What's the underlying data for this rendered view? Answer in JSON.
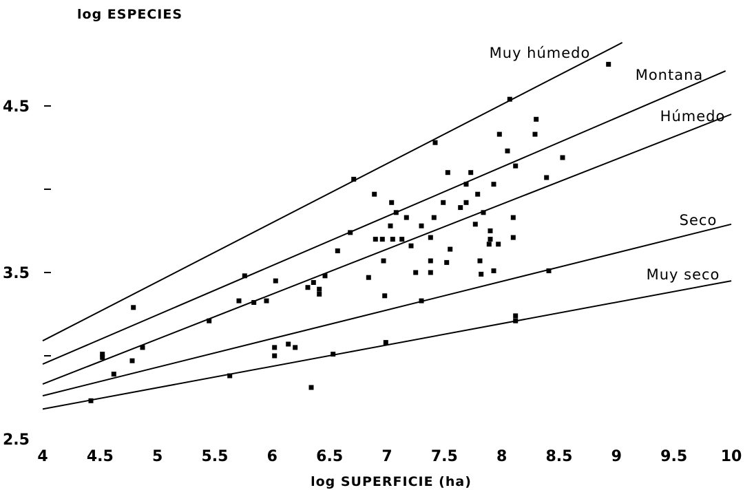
{
  "chart_data": {
    "type": "scatter",
    "title": "",
    "xlabel": "log SUPERFICIE (ha)",
    "ylabel": "log ESPECIES",
    "xlim": [
      4,
      10
    ],
    "ylim": [
      2.5,
      4.95
    ],
    "x_ticks": [
      "4",
      "4.5",
      "5",
      "5.5",
      "6",
      "6.5",
      "7",
      "7.5",
      "8",
      "8.5",
      "9",
      "9.5",
      "10"
    ],
    "y_ticks": [
      "2.5",
      "3.5",
      "4.5"
    ],
    "y_minor_ticks": [
      3.0,
      4.0
    ],
    "grid": false,
    "regression_lines": [
      {
        "name": "Muy húmedo",
        "x": [
          4,
          9.05
        ],
        "y": [
          3.09,
          4.88
        ]
      },
      {
        "name": "Montana",
        "x": [
          4,
          9.95
        ],
        "y": [
          2.95,
          4.71
        ]
      },
      {
        "name": "Húmedo",
        "x": [
          4,
          10
        ],
        "y": [
          2.83,
          4.45
        ]
      },
      {
        "name": "Seco",
        "x": [
          4,
          10
        ],
        "y": [
          2.76,
          3.79
        ]
      },
      {
        "name": "Muy seco",
        "x": [
          4,
          10
        ],
        "y": [
          2.68,
          3.45
        ]
      }
    ],
    "points": [
      {
        "x": 4.42,
        "y": 2.73
      },
      {
        "x": 4.52,
        "y": 2.99
      },
      {
        "x": 4.52,
        "y": 3.01
      },
      {
        "x": 4.62,
        "y": 2.89
      },
      {
        "x": 4.78,
        "y": 2.97
      },
      {
        "x": 4.79,
        "y": 3.29
      },
      {
        "x": 4.87,
        "y": 3.05
      },
      {
        "x": 5.45,
        "y": 3.21
      },
      {
        "x": 5.63,
        "y": 2.88
      },
      {
        "x": 5.71,
        "y": 3.33
      },
      {
        "x": 5.76,
        "y": 3.48
      },
      {
        "x": 5.84,
        "y": 3.32
      },
      {
        "x": 5.95,
        "y": 3.33
      },
      {
        "x": 6.02,
        "y": 3.05
      },
      {
        "x": 6.02,
        "y": 3.0
      },
      {
        "x": 6.03,
        "y": 3.45
      },
      {
        "x": 6.14,
        "y": 3.07
      },
      {
        "x": 6.2,
        "y": 3.05
      },
      {
        "x": 6.31,
        "y": 3.41
      },
      {
        "x": 6.34,
        "y": 2.81
      },
      {
        "x": 6.36,
        "y": 3.44
      },
      {
        "x": 6.41,
        "y": 3.37
      },
      {
        "x": 6.41,
        "y": 3.4
      },
      {
        "x": 6.46,
        "y": 3.48
      },
      {
        "x": 6.53,
        "y": 3.01
      },
      {
        "x": 6.57,
        "y": 3.63
      },
      {
        "x": 6.68,
        "y": 3.74
      },
      {
        "x": 6.71,
        "y": 4.06
      },
      {
        "x": 6.84,
        "y": 3.47
      },
      {
        "x": 6.89,
        "y": 3.97
      },
      {
        "x": 6.9,
        "y": 3.7
      },
      {
        "x": 6.96,
        "y": 3.7
      },
      {
        "x": 6.97,
        "y": 3.57
      },
      {
        "x": 6.98,
        "y": 3.36
      },
      {
        "x": 6.99,
        "y": 3.08
      },
      {
        "x": 7.03,
        "y": 3.78
      },
      {
        "x": 7.04,
        "y": 3.92
      },
      {
        "x": 7.05,
        "y": 3.7
      },
      {
        "x": 7.08,
        "y": 3.86
      },
      {
        "x": 7.13,
        "y": 3.7
      },
      {
        "x": 7.17,
        "y": 3.83
      },
      {
        "x": 7.21,
        "y": 3.66
      },
      {
        "x": 7.25,
        "y": 3.5
      },
      {
        "x": 7.3,
        "y": 3.33
      },
      {
        "x": 7.3,
        "y": 3.78
      },
      {
        "x": 7.38,
        "y": 3.5
      },
      {
        "x": 7.38,
        "y": 3.57
      },
      {
        "x": 7.38,
        "y": 3.71
      },
      {
        "x": 7.41,
        "y": 3.83
      },
      {
        "x": 7.42,
        "y": 4.28
      },
      {
        "x": 7.49,
        "y": 3.92
      },
      {
        "x": 7.52,
        "y": 3.56
      },
      {
        "x": 7.53,
        "y": 4.1
      },
      {
        "x": 7.55,
        "y": 3.64
      },
      {
        "x": 7.64,
        "y": 3.89
      },
      {
        "x": 7.69,
        "y": 4.03
      },
      {
        "x": 7.69,
        "y": 3.92
      },
      {
        "x": 7.73,
        "y": 4.1
      },
      {
        "x": 7.77,
        "y": 3.79
      },
      {
        "x": 7.79,
        "y": 3.97
      },
      {
        "x": 7.81,
        "y": 3.57
      },
      {
        "x": 7.82,
        "y": 3.49
      },
      {
        "x": 7.84,
        "y": 3.86
      },
      {
        "x": 7.89,
        "y": 3.67
      },
      {
        "x": 7.9,
        "y": 3.7
      },
      {
        "x": 7.9,
        "y": 3.75
      },
      {
        "x": 7.93,
        "y": 3.51
      },
      {
        "x": 7.93,
        "y": 4.03
      },
      {
        "x": 7.97,
        "y": 3.67
      },
      {
        "x": 7.98,
        "y": 4.33
      },
      {
        "x": 8.05,
        "y": 4.23
      },
      {
        "x": 8.07,
        "y": 4.54
      },
      {
        "x": 8.1,
        "y": 3.71
      },
      {
        "x": 8.1,
        "y": 3.83
      },
      {
        "x": 8.12,
        "y": 3.24
      },
      {
        "x": 8.12,
        "y": 3.21
      },
      {
        "x": 8.12,
        "y": 4.14
      },
      {
        "x": 8.29,
        "y": 4.33
      },
      {
        "x": 8.3,
        "y": 4.42
      },
      {
        "x": 8.39,
        "y": 4.07
      },
      {
        "x": 8.41,
        "y": 3.51
      },
      {
        "x": 8.53,
        "y": 4.19
      },
      {
        "x": 8.93,
        "y": 4.75
      }
    ]
  }
}
